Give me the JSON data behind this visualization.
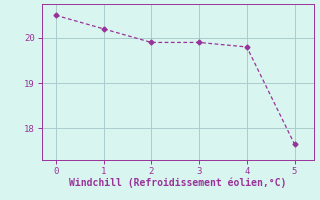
{
  "x": [
    0,
    1,
    2,
    3,
    4,
    5
  ],
  "y": [
    20.5,
    20.2,
    19.9,
    19.9,
    19.8,
    17.65
  ],
  "line_color": "#993399",
  "marker": "D",
  "marker_size": 2.5,
  "bg_color": "#d8f5f0",
  "grid_color": "#aacccc",
  "axis_color": "#993399",
  "xlabel": "Windchill (Refroidissement éolien,°C)",
  "xlabel_fontsize": 7.0,
  "tick_fontsize": 6.5,
  "xlim": [
    -0.3,
    5.4
  ],
  "ylim": [
    17.3,
    20.75
  ],
  "yticks": [
    18,
    19,
    20
  ],
  "xticks": [
    0,
    1,
    2,
    3,
    4,
    5
  ]
}
